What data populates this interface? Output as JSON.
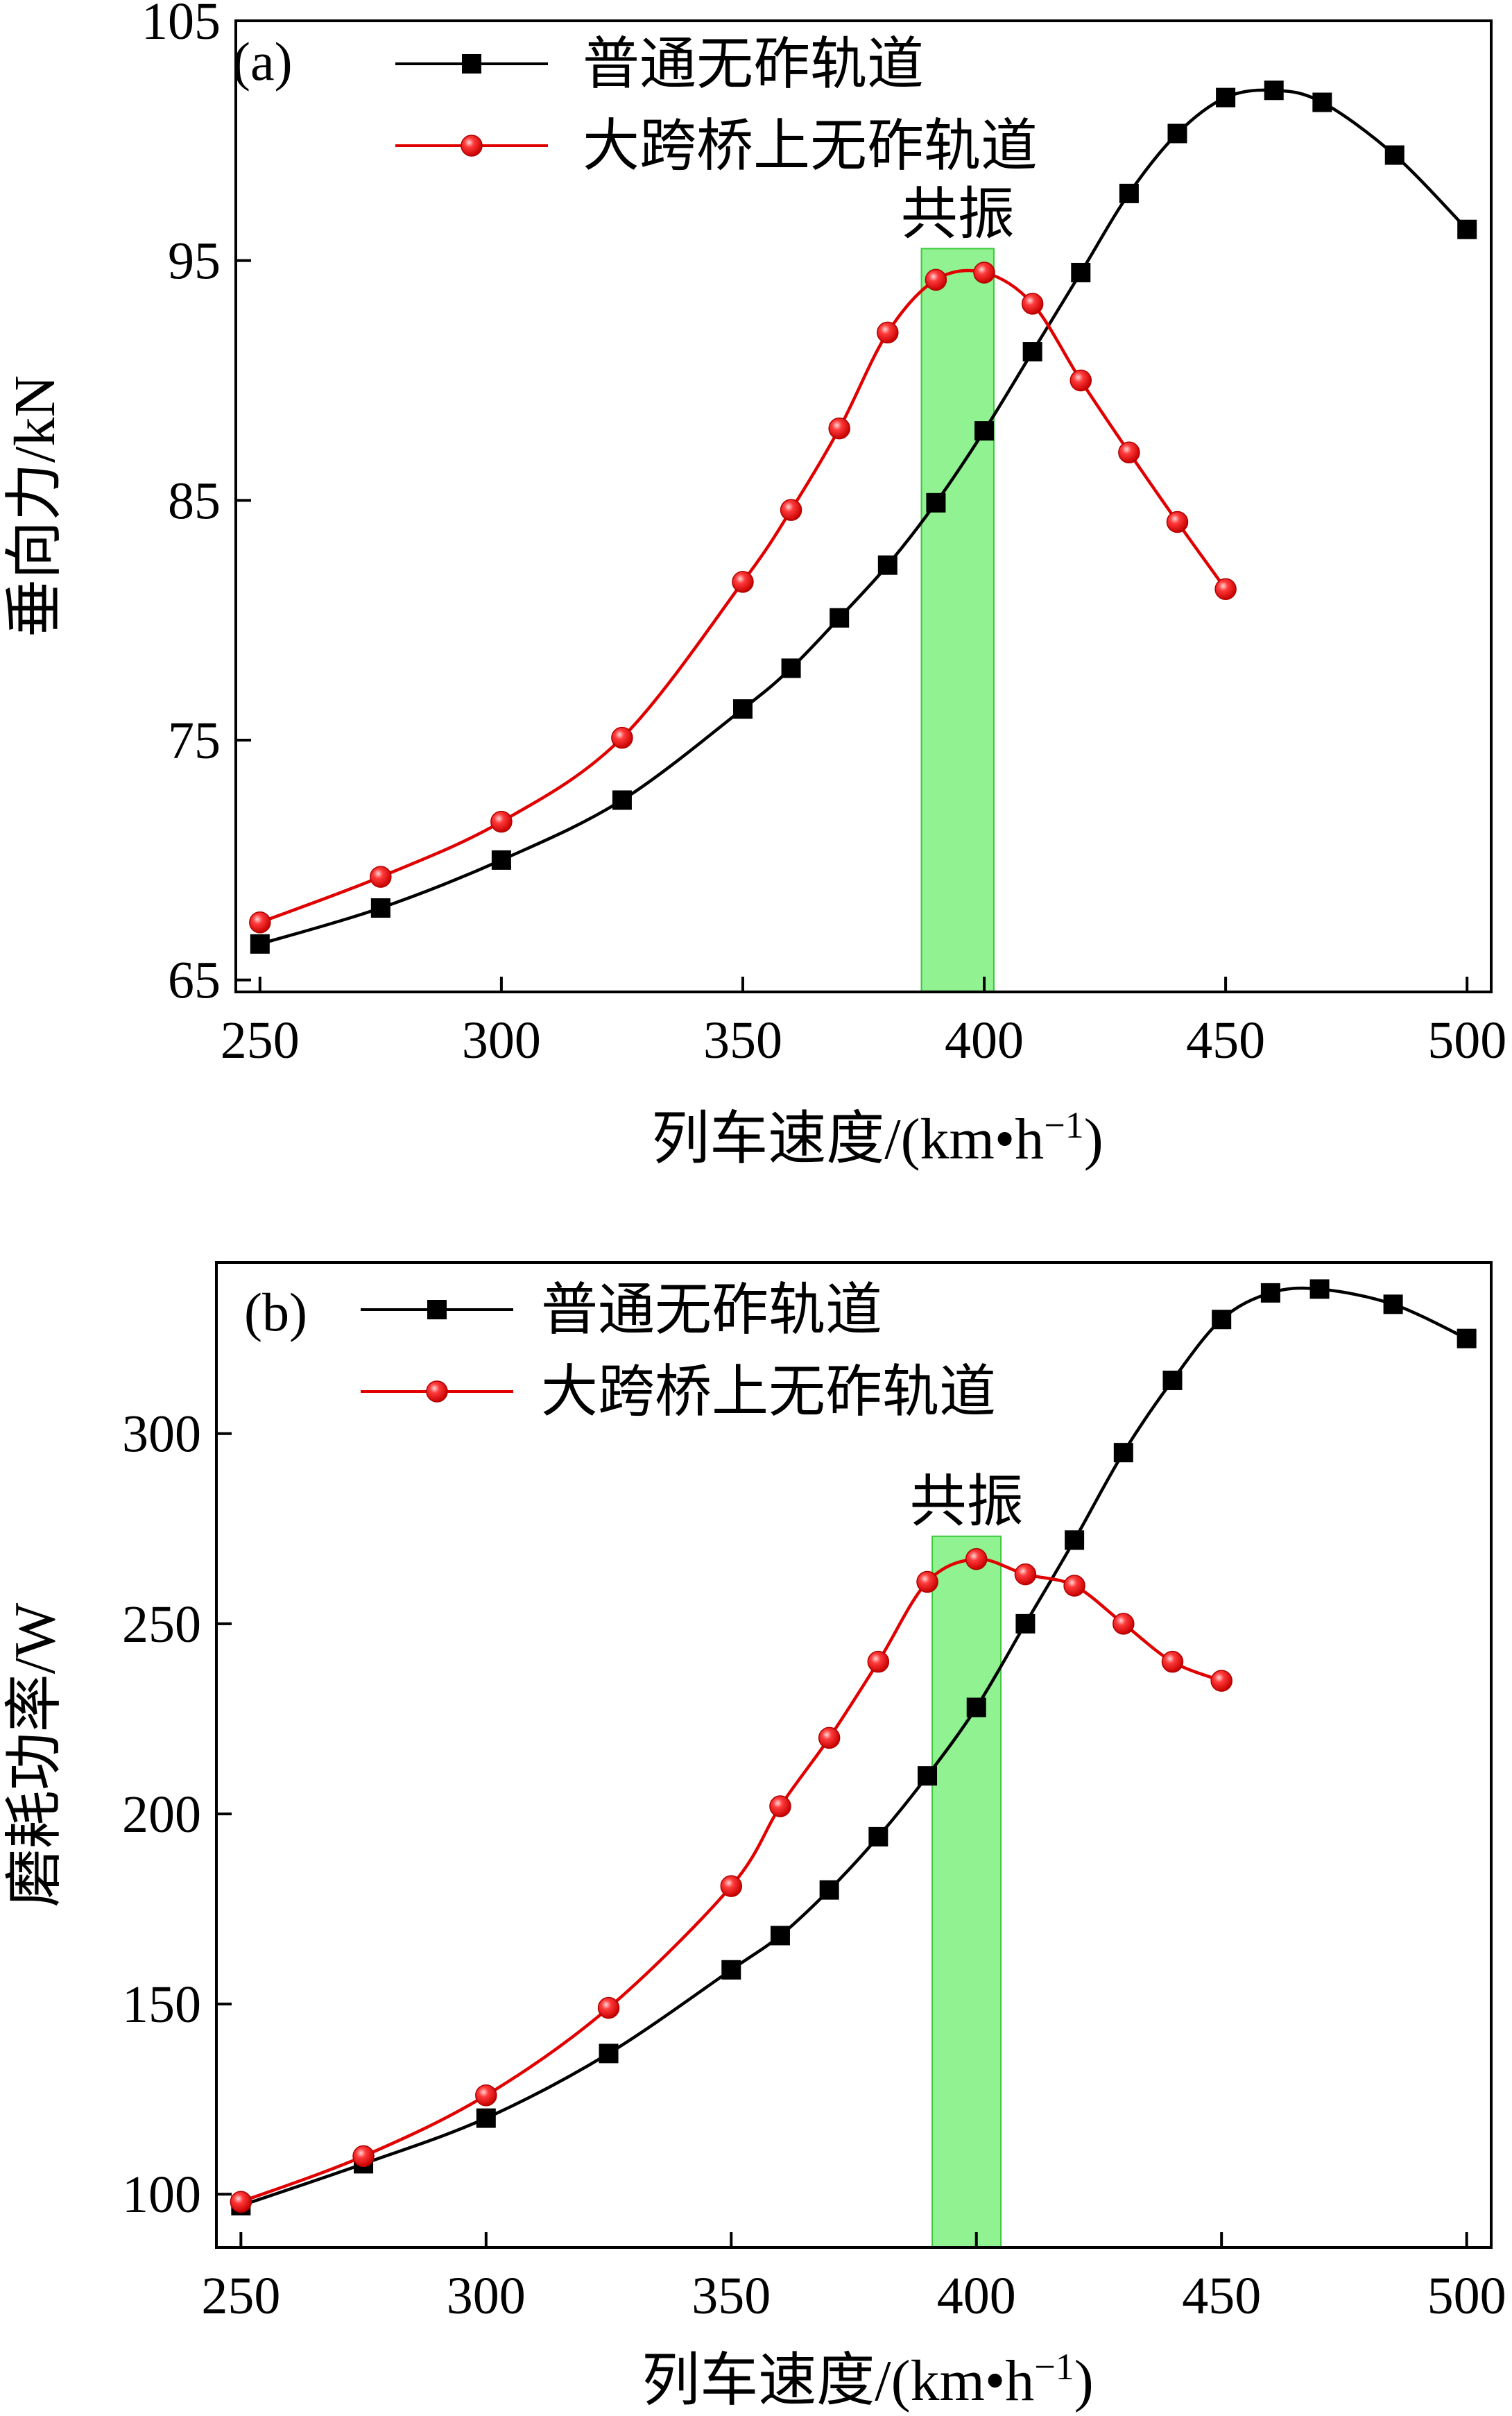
{
  "chart_data": [
    {
      "type": "line",
      "panel_label": "(a)",
      "xlabel": "列车速度/(km•h",
      "xlabel_sup": "−1",
      "xlabel_tail": ")",
      "ylabel": "垂向力/kN",
      "xlim": [
        245,
        505
      ],
      "ylim": [
        64.5,
        105
      ],
      "xticks": [
        250,
        300,
        350,
        400,
        450,
        500
      ],
      "yticks": [
        65,
        75,
        85,
        95,
        105
      ],
      "resonance_band": {
        "label": "共振",
        "x_from": 387,
        "x_to": 402,
        "y_top": 95.5,
        "color": "#7cf07c"
      },
      "legend_position": "top",
      "series": [
        {
          "name": "普通无砟轨道",
          "color": "#000000",
          "marker": "square",
          "x": [
            250,
            275,
            300,
            325,
            350,
            360,
            370,
            380,
            390,
            400,
            410,
            420,
            430,
            440,
            450,
            460,
            470,
            485,
            500
          ],
          "y": [
            66.5,
            68.0,
            70.0,
            72.5,
            76.3,
            78.0,
            80.1,
            82.3,
            84.9,
            87.9,
            91.2,
            94.5,
            97.8,
            100.3,
            101.8,
            102.1,
            101.6,
            99.4,
            96.3
          ]
        },
        {
          "name": "大跨桥上无砟轨道",
          "color": "#e00000",
          "marker": "circle",
          "x": [
            250,
            275,
            300,
            325,
            350,
            360,
            370,
            380,
            390,
            400,
            410,
            420,
            430,
            440,
            450
          ],
          "y": [
            67.4,
            69.3,
            71.6,
            75.1,
            81.6,
            84.6,
            88.0,
            92.0,
            94.2,
            94.5,
            93.2,
            90.0,
            87.0,
            84.1,
            81.3
          ]
        }
      ]
    },
    {
      "type": "line",
      "panel_label": "(b)",
      "xlabel": "列车速度/(km•h",
      "xlabel_sup": "−1",
      "xlabel_tail": ")",
      "ylabel": "磨耗功率/W",
      "xlim": [
        245,
        505
      ],
      "ylim": [
        86,
        345
      ],
      "xticks": [
        250,
        300,
        350,
        400,
        450,
        500
      ],
      "yticks": [
        100,
        150,
        200,
        250,
        300
      ],
      "resonance_band": {
        "label": "共振",
        "x_from": 391,
        "x_to": 405,
        "y_top": 273,
        "color": "#7cf07c"
      },
      "legend_position": "top",
      "series": [
        {
          "name": "普通无砟轨道",
          "color": "#000000",
          "marker": "square",
          "x": [
            250,
            275,
            300,
            325,
            350,
            360,
            370,
            380,
            390,
            400,
            410,
            420,
            430,
            440,
            450,
            460,
            470,
            485,
            500
          ],
          "y": [
            97,
            108,
            120,
            137,
            159,
            168,
            180,
            194,
            210,
            228,
            250,
            272,
            295,
            314,
            330,
            337,
            338,
            334,
            325
          ]
        },
        {
          "name": "大跨桥上无砟轨道",
          "color": "#e00000",
          "marker": "circle",
          "x": [
            250,
            275,
            300,
            325,
            350,
            360,
            370,
            380,
            390,
            400,
            410,
            420,
            430,
            440,
            450
          ],
          "y": [
            98,
            110,
            126,
            149,
            181,
            202,
            220,
            240,
            261,
            267,
            263,
            260,
            250,
            240,
            235
          ]
        }
      ]
    }
  ]
}
